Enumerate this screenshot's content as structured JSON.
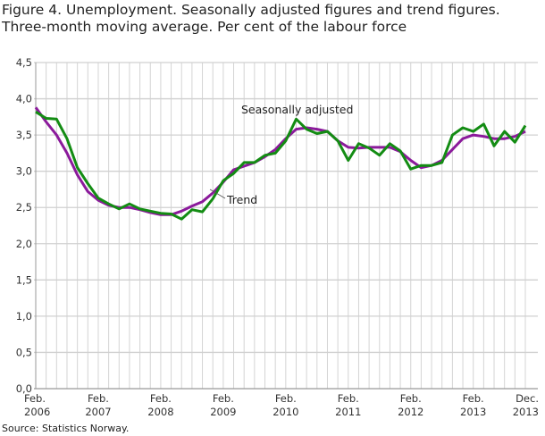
{
  "chart_data": {
    "type": "line",
    "title": "Figure 4. Unemployment. Seasonally adjusted figures and trend figures. Three-month moving average. Per cent of the labour force",
    "source": "Source: Statistics Norway.",
    "ylim": [
      0,
      4.5
    ],
    "yticks": [
      "0,0",
      "0,5",
      "1,0",
      "1,5",
      "2,0",
      "2,5",
      "3,0",
      "3,5",
      "4,0",
      "4,5"
    ],
    "xticks": [
      {
        "month": "Feb.",
        "year": "2006",
        "x": "2006-02"
      },
      {
        "month": "Feb.",
        "year": "2007",
        "x": "2007-02"
      },
      {
        "month": "Feb.",
        "year": "2008",
        "x": "2008-02"
      },
      {
        "month": "Feb.",
        "year": "2009",
        "x": "2009-02"
      },
      {
        "month": "Feb.",
        "year": "2010",
        "x": "2010-02"
      },
      {
        "month": "Feb.",
        "year": "2011",
        "x": "2011-02"
      },
      {
        "month": "Feb.",
        "year": "2012",
        "x": "2012-02"
      },
      {
        "month": "Feb.",
        "year": "2013",
        "x": "2013-02"
      },
      {
        "month": "Dec.",
        "year": "2013",
        "x": "2013-12"
      }
    ],
    "grid": true,
    "x": [
      "2006-02",
      "2006-04",
      "2006-06",
      "2006-08",
      "2006-10",
      "2006-12",
      "2007-02",
      "2007-04",
      "2007-06",
      "2007-08",
      "2007-10",
      "2007-12",
      "2008-02",
      "2008-04",
      "2008-06",
      "2008-08",
      "2008-10",
      "2008-12",
      "2009-02",
      "2009-04",
      "2009-06",
      "2009-08",
      "2009-10",
      "2009-12",
      "2010-02",
      "2010-04",
      "2010-06",
      "2010-08",
      "2010-10",
      "2010-12",
      "2011-02",
      "2011-04",
      "2011-06",
      "2011-08",
      "2011-10",
      "2011-12",
      "2012-02",
      "2012-04",
      "2012-06",
      "2012-08",
      "2012-10",
      "2012-12",
      "2013-02",
      "2013-04",
      "2013-06",
      "2013-08",
      "2013-10",
      "2013-12"
    ],
    "series": [
      {
        "name": "Seasonally adjusted",
        "color": "#138c13",
        "values": [
          3.82,
          3.73,
          3.72,
          3.45,
          3.05,
          2.83,
          2.63,
          2.55,
          2.48,
          2.55,
          2.48,
          2.45,
          2.42,
          2.41,
          2.34,
          2.47,
          2.44,
          2.62,
          2.87,
          2.97,
          3.12,
          3.12,
          3.22,
          3.25,
          3.42,
          3.72,
          3.58,
          3.52,
          3.55,
          3.42,
          3.15,
          3.38,
          3.32,
          3.22,
          3.38,
          3.28,
          3.03,
          3.08,
          3.08,
          3.12,
          3.5,
          3.6,
          3.55,
          3.65,
          3.35,
          3.55,
          3.4,
          3.63
        ]
      },
      {
        "name": "Trend",
        "color": "#8b1a9b",
        "values": [
          3.88,
          3.68,
          3.5,
          3.25,
          2.95,
          2.72,
          2.6,
          2.53,
          2.5,
          2.5,
          2.47,
          2.43,
          2.4,
          2.4,
          2.45,
          2.52,
          2.58,
          2.7,
          2.85,
          3.02,
          3.07,
          3.12,
          3.2,
          3.3,
          3.45,
          3.58,
          3.6,
          3.58,
          3.55,
          3.42,
          3.33,
          3.32,
          3.33,
          3.33,
          3.33,
          3.27,
          3.15,
          3.05,
          3.08,
          3.15,
          3.3,
          3.45,
          3.5,
          3.48,
          3.45,
          3.45,
          3.48,
          3.55
        ]
      }
    ],
    "annotations": [
      {
        "text": "Seasonally adjusted",
        "series": "Seasonally adjusted"
      },
      {
        "text": "Trend",
        "series": "Trend"
      }
    ]
  }
}
